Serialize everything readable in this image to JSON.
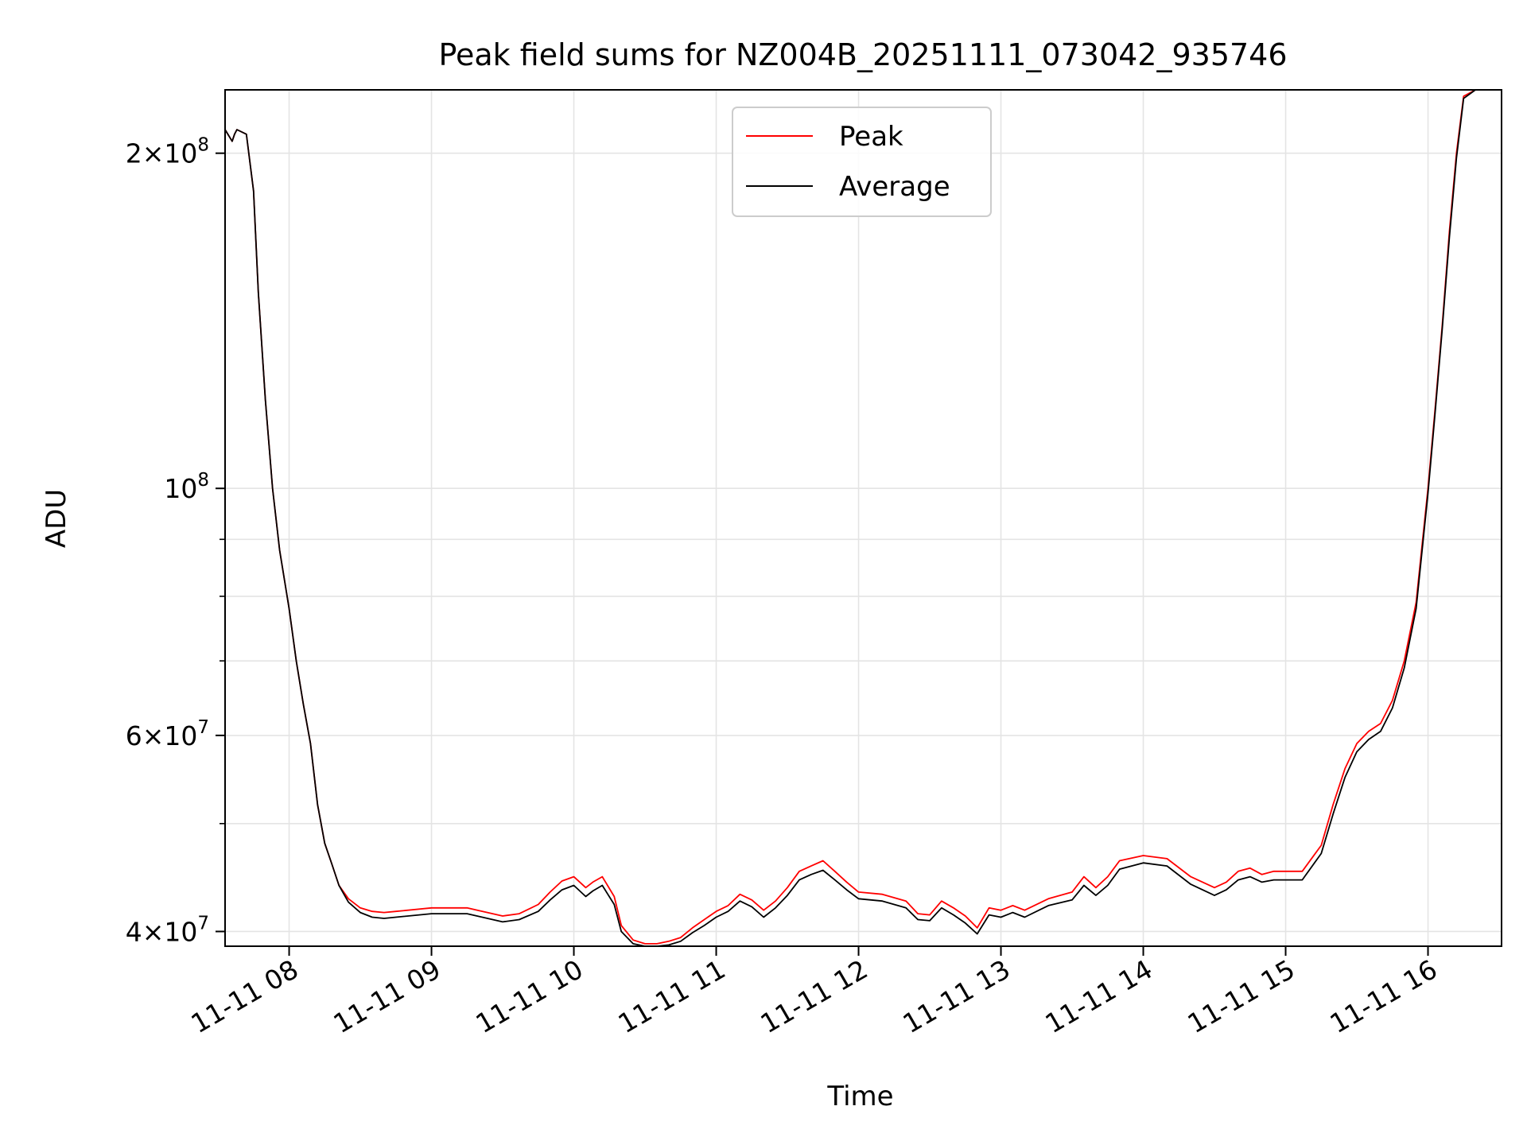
{
  "chart_data": {
    "type": "line",
    "title": "Peak field sums for NZ004B_20251111_073042_935746",
    "xlabel": "Time",
    "ylabel": "ADU",
    "yscale": "log",
    "ylim": [
      38800000,
      228000000
    ],
    "xlim": [
      "2025-11-11 07:33",
      "2025-11-11 16:31"
    ],
    "grid": true,
    "legend": "upper center",
    "xticks": [
      {
        "value": "2025-11-11 08:00",
        "label": "11-11 08"
      },
      {
        "value": "2025-11-11 09:00",
        "label": "11-11 09"
      },
      {
        "value": "2025-11-11 10:00",
        "label": "11-11 10"
      },
      {
        "value": "2025-11-11 11:00",
        "label": "11-11 11"
      },
      {
        "value": "2025-11-11 12:00",
        "label": "11-11 12"
      },
      {
        "value": "2025-11-11 13:00",
        "label": "11-11 13"
      },
      {
        "value": "2025-11-11 14:00",
        "label": "11-11 14"
      },
      {
        "value": "2025-11-11 15:00",
        "label": "11-11 15"
      },
      {
        "value": "2025-11-11 16:00",
        "label": "11-11 16"
      }
    ],
    "yticks": [
      {
        "value": 40000000,
        "base": "4×10",
        "exp": "7"
      },
      {
        "value": 60000000,
        "base": "6×10",
        "exp": "7"
      },
      {
        "value": 100000000,
        "base": "10",
        "exp": "8"
      },
      {
        "value": 200000000,
        "base": "2×10",
        "exp": "8"
      }
    ],
    "yminor": [
      50000000,
      70000000,
      80000000,
      90000000
    ],
    "series": [
      {
        "name": "Peak",
        "color": "#ff0000",
        "x": [
          "2025-11-11 07:33",
          "2025-11-11 07:36",
          "2025-11-11 07:37",
          "2025-11-11 07:38",
          "2025-11-11 07:42",
          "2025-11-11 07:45",
          "2025-11-11 07:47",
          "2025-11-11 07:50",
          "2025-11-11 07:53",
          "2025-11-11 07:56",
          "2025-11-11 08:00",
          "2025-11-11 08:03",
          "2025-11-11 08:06",
          "2025-11-11 08:09",
          "2025-11-11 08:12",
          "2025-11-11 08:15",
          "2025-11-11 08:18",
          "2025-11-11 08:21",
          "2025-11-11 08:25",
          "2025-11-11 08:30",
          "2025-11-11 08:35",
          "2025-11-11 08:40",
          "2025-11-11 08:45",
          "2025-11-11 09:00",
          "2025-11-11 09:15",
          "2025-11-11 09:30",
          "2025-11-11 09:37",
          "2025-11-11 09:45",
          "2025-11-11 09:50",
          "2025-11-11 09:55",
          "2025-11-11 10:00",
          "2025-11-11 10:05",
          "2025-11-11 10:08",
          "2025-11-11 10:12",
          "2025-11-11 10:17",
          "2025-11-11 10:20",
          "2025-11-11 10:25",
          "2025-11-11 10:30",
          "2025-11-11 10:35",
          "2025-11-11 10:40",
          "2025-11-11 10:45",
          "2025-11-11 10:50",
          "2025-11-11 10:55",
          "2025-11-11 11:00",
          "2025-11-11 11:05",
          "2025-11-11 11:10",
          "2025-11-11 11:15",
          "2025-11-11 11:20",
          "2025-11-11 11:25",
          "2025-11-11 11:30",
          "2025-11-11 11:35",
          "2025-11-11 11:40",
          "2025-11-11 11:45",
          "2025-11-11 11:50",
          "2025-11-11 11:55",
          "2025-11-11 12:00",
          "2025-11-11 12:10",
          "2025-11-11 12:20",
          "2025-11-11 12:25",
          "2025-11-11 12:30",
          "2025-11-11 12:35",
          "2025-11-11 12:40",
          "2025-11-11 12:45",
          "2025-11-11 12:50",
          "2025-11-11 12:55",
          "2025-11-11 13:00",
          "2025-11-11 13:05",
          "2025-11-11 13:10",
          "2025-11-11 13:20",
          "2025-11-11 13:30",
          "2025-11-11 13:35",
          "2025-11-11 13:40",
          "2025-11-11 13:45",
          "2025-11-11 13:50",
          "2025-11-11 14:00",
          "2025-11-11 14:10",
          "2025-11-11 14:20",
          "2025-11-11 14:30",
          "2025-11-11 14:35",
          "2025-11-11 14:40",
          "2025-11-11 14:45",
          "2025-11-11 14:50",
          "2025-11-11 14:55",
          "2025-11-11 15:00",
          "2025-11-11 15:05",
          "2025-11-11 15:07",
          "2025-11-11 15:15",
          "2025-11-11 15:20",
          "2025-11-11 15:25",
          "2025-11-11 15:30",
          "2025-11-11 15:35",
          "2025-11-11 15:40",
          "2025-11-11 15:45",
          "2025-11-11 15:50",
          "2025-11-11 15:55",
          "2025-11-11 16:00",
          "2025-11-11 16:03",
          "2025-11-11 16:06",
          "2025-11-11 16:09",
          "2025-11-11 16:12",
          "2025-11-11 16:15",
          "2025-11-11 16:20",
          "2025-11-11 16:31"
        ],
        "values": [
          210000000,
          205000000,
          208000000,
          210000000,
          208000000,
          185000000,
          150000000,
          120000000,
          100000000,
          88000000,
          78000000,
          70000000,
          64000000,
          59000000,
          52000000,
          48000000,
          46000000,
          44000000,
          42800000,
          42000000,
          41700000,
          41600000,
          41700000,
          42000000,
          42000000,
          41300000,
          41500000,
          42300000,
          43400000,
          44400000,
          44800000,
          43800000,
          44300000,
          44800000,
          43000000,
          40500000,
          39300000,
          39000000,
          39000000,
          39200000,
          39500000,
          40300000,
          41000000,
          41700000,
          42200000,
          43200000,
          42700000,
          41800000,
          42600000,
          43800000,
          45300000,
          45800000,
          46300000,
          45300000,
          44300000,
          43400000,
          43200000,
          42600000,
          41500000,
          41400000,
          42600000,
          42000000,
          41300000,
          40300000,
          42000000,
          41800000,
          42200000,
          41800000,
          42800000,
          43400000,
          44800000,
          43800000,
          44800000,
          46300000,
          46800000,
          46500000,
          44800000,
          43800000,
          44300000,
          45300000,
          45600000,
          45000000,
          45300000,
          45300000,
          45300000,
          45300000,
          47800000,
          52000000,
          56000000,
          59000000,
          60500000,
          61500000,
          64500000,
          70000000,
          79000000,
          100000000,
          118000000,
          140000000,
          170000000,
          200000000,
          225000000,
          228000000,
          228000000
        ]
      },
      {
        "name": "Average",
        "color": "#000000",
        "x": [
          "2025-11-11 07:33",
          "2025-11-11 07:36",
          "2025-11-11 07:37",
          "2025-11-11 07:38",
          "2025-11-11 07:42",
          "2025-11-11 07:45",
          "2025-11-11 07:47",
          "2025-11-11 07:50",
          "2025-11-11 07:53",
          "2025-11-11 07:56",
          "2025-11-11 08:00",
          "2025-11-11 08:03",
          "2025-11-11 08:06",
          "2025-11-11 08:09",
          "2025-11-11 08:12",
          "2025-11-11 08:15",
          "2025-11-11 08:18",
          "2025-11-11 08:21",
          "2025-11-11 08:25",
          "2025-11-11 08:30",
          "2025-11-11 08:35",
          "2025-11-11 08:40",
          "2025-11-11 08:45",
          "2025-11-11 09:00",
          "2025-11-11 09:15",
          "2025-11-11 09:30",
          "2025-11-11 09:37",
          "2025-11-11 09:45",
          "2025-11-11 09:50",
          "2025-11-11 09:55",
          "2025-11-11 10:00",
          "2025-11-11 10:05",
          "2025-11-11 10:08",
          "2025-11-11 10:12",
          "2025-11-11 10:17",
          "2025-11-11 10:20",
          "2025-11-11 10:25",
          "2025-11-11 10:30",
          "2025-11-11 10:35",
          "2025-11-11 10:40",
          "2025-11-11 10:45",
          "2025-11-11 10:50",
          "2025-11-11 10:55",
          "2025-11-11 11:00",
          "2025-11-11 11:05",
          "2025-11-11 11:10",
          "2025-11-11 11:15",
          "2025-11-11 11:20",
          "2025-11-11 11:25",
          "2025-11-11 11:30",
          "2025-11-11 11:35",
          "2025-11-11 11:40",
          "2025-11-11 11:45",
          "2025-11-11 11:50",
          "2025-11-11 11:55",
          "2025-11-11 12:00",
          "2025-11-11 12:10",
          "2025-11-11 12:20",
          "2025-11-11 12:25",
          "2025-11-11 12:30",
          "2025-11-11 12:35",
          "2025-11-11 12:40",
          "2025-11-11 12:45",
          "2025-11-11 12:50",
          "2025-11-11 12:55",
          "2025-11-11 13:00",
          "2025-11-11 13:05",
          "2025-11-11 13:10",
          "2025-11-11 13:20",
          "2025-11-11 13:30",
          "2025-11-11 13:35",
          "2025-11-11 13:40",
          "2025-11-11 13:45",
          "2025-11-11 13:50",
          "2025-11-11 14:00",
          "2025-11-11 14:10",
          "2025-11-11 14:20",
          "2025-11-11 14:30",
          "2025-11-11 14:35",
          "2025-11-11 14:40",
          "2025-11-11 14:45",
          "2025-11-11 14:50",
          "2025-11-11 14:55",
          "2025-11-11 15:00",
          "2025-11-11 15:05",
          "2025-11-11 15:07",
          "2025-11-11 15:15",
          "2025-11-11 15:20",
          "2025-11-11 15:25",
          "2025-11-11 15:30",
          "2025-11-11 15:35",
          "2025-11-11 15:40",
          "2025-11-11 15:45",
          "2025-11-11 15:50",
          "2025-11-11 15:55",
          "2025-11-11 16:00",
          "2025-11-11 16:03",
          "2025-11-11 16:06",
          "2025-11-11 16:09",
          "2025-11-11 16:12",
          "2025-11-11 16:15",
          "2025-11-11 16:20",
          "2025-11-11 16:31"
        ],
        "values": [
          210000000,
          205000000,
          208000000,
          210000000,
          208000000,
          185000000,
          150000000,
          120000000,
          100000000,
          88000000,
          78000000,
          70000000,
          64000000,
          59000000,
          52000000,
          48000000,
          46000000,
          44000000,
          42500000,
          41600000,
          41200000,
          41100000,
          41200000,
          41500000,
          41500000,
          40800000,
          41000000,
          41700000,
          42700000,
          43600000,
          44000000,
          43000000,
          43500000,
          44000000,
          42300000,
          40000000,
          39000000,
          38800000,
          38800000,
          38900000,
          39200000,
          39900000,
          40500000,
          41200000,
          41700000,
          42600000,
          42100000,
          41200000,
          42000000,
          43100000,
          44500000,
          45000000,
          45400000,
          44500000,
          43600000,
          42800000,
          42600000,
          42000000,
          41000000,
          40900000,
          42000000,
          41400000,
          40700000,
          39800000,
          41400000,
          41200000,
          41600000,
          41200000,
          42200000,
          42700000,
          44000000,
          43100000,
          44000000,
          45500000,
          46100000,
          45800000,
          44100000,
          43100000,
          43600000,
          44500000,
          44800000,
          44300000,
          44500000,
          44500000,
          44500000,
          44500000,
          47000000,
          51000000,
          55000000,
          58000000,
          59500000,
          60500000,
          63500000,
          69000000,
          78000000,
          99000000,
          117000000,
          139000000,
          168000000,
          198000000,
          224000000,
          228000000,
          228000000
        ]
      }
    ]
  }
}
